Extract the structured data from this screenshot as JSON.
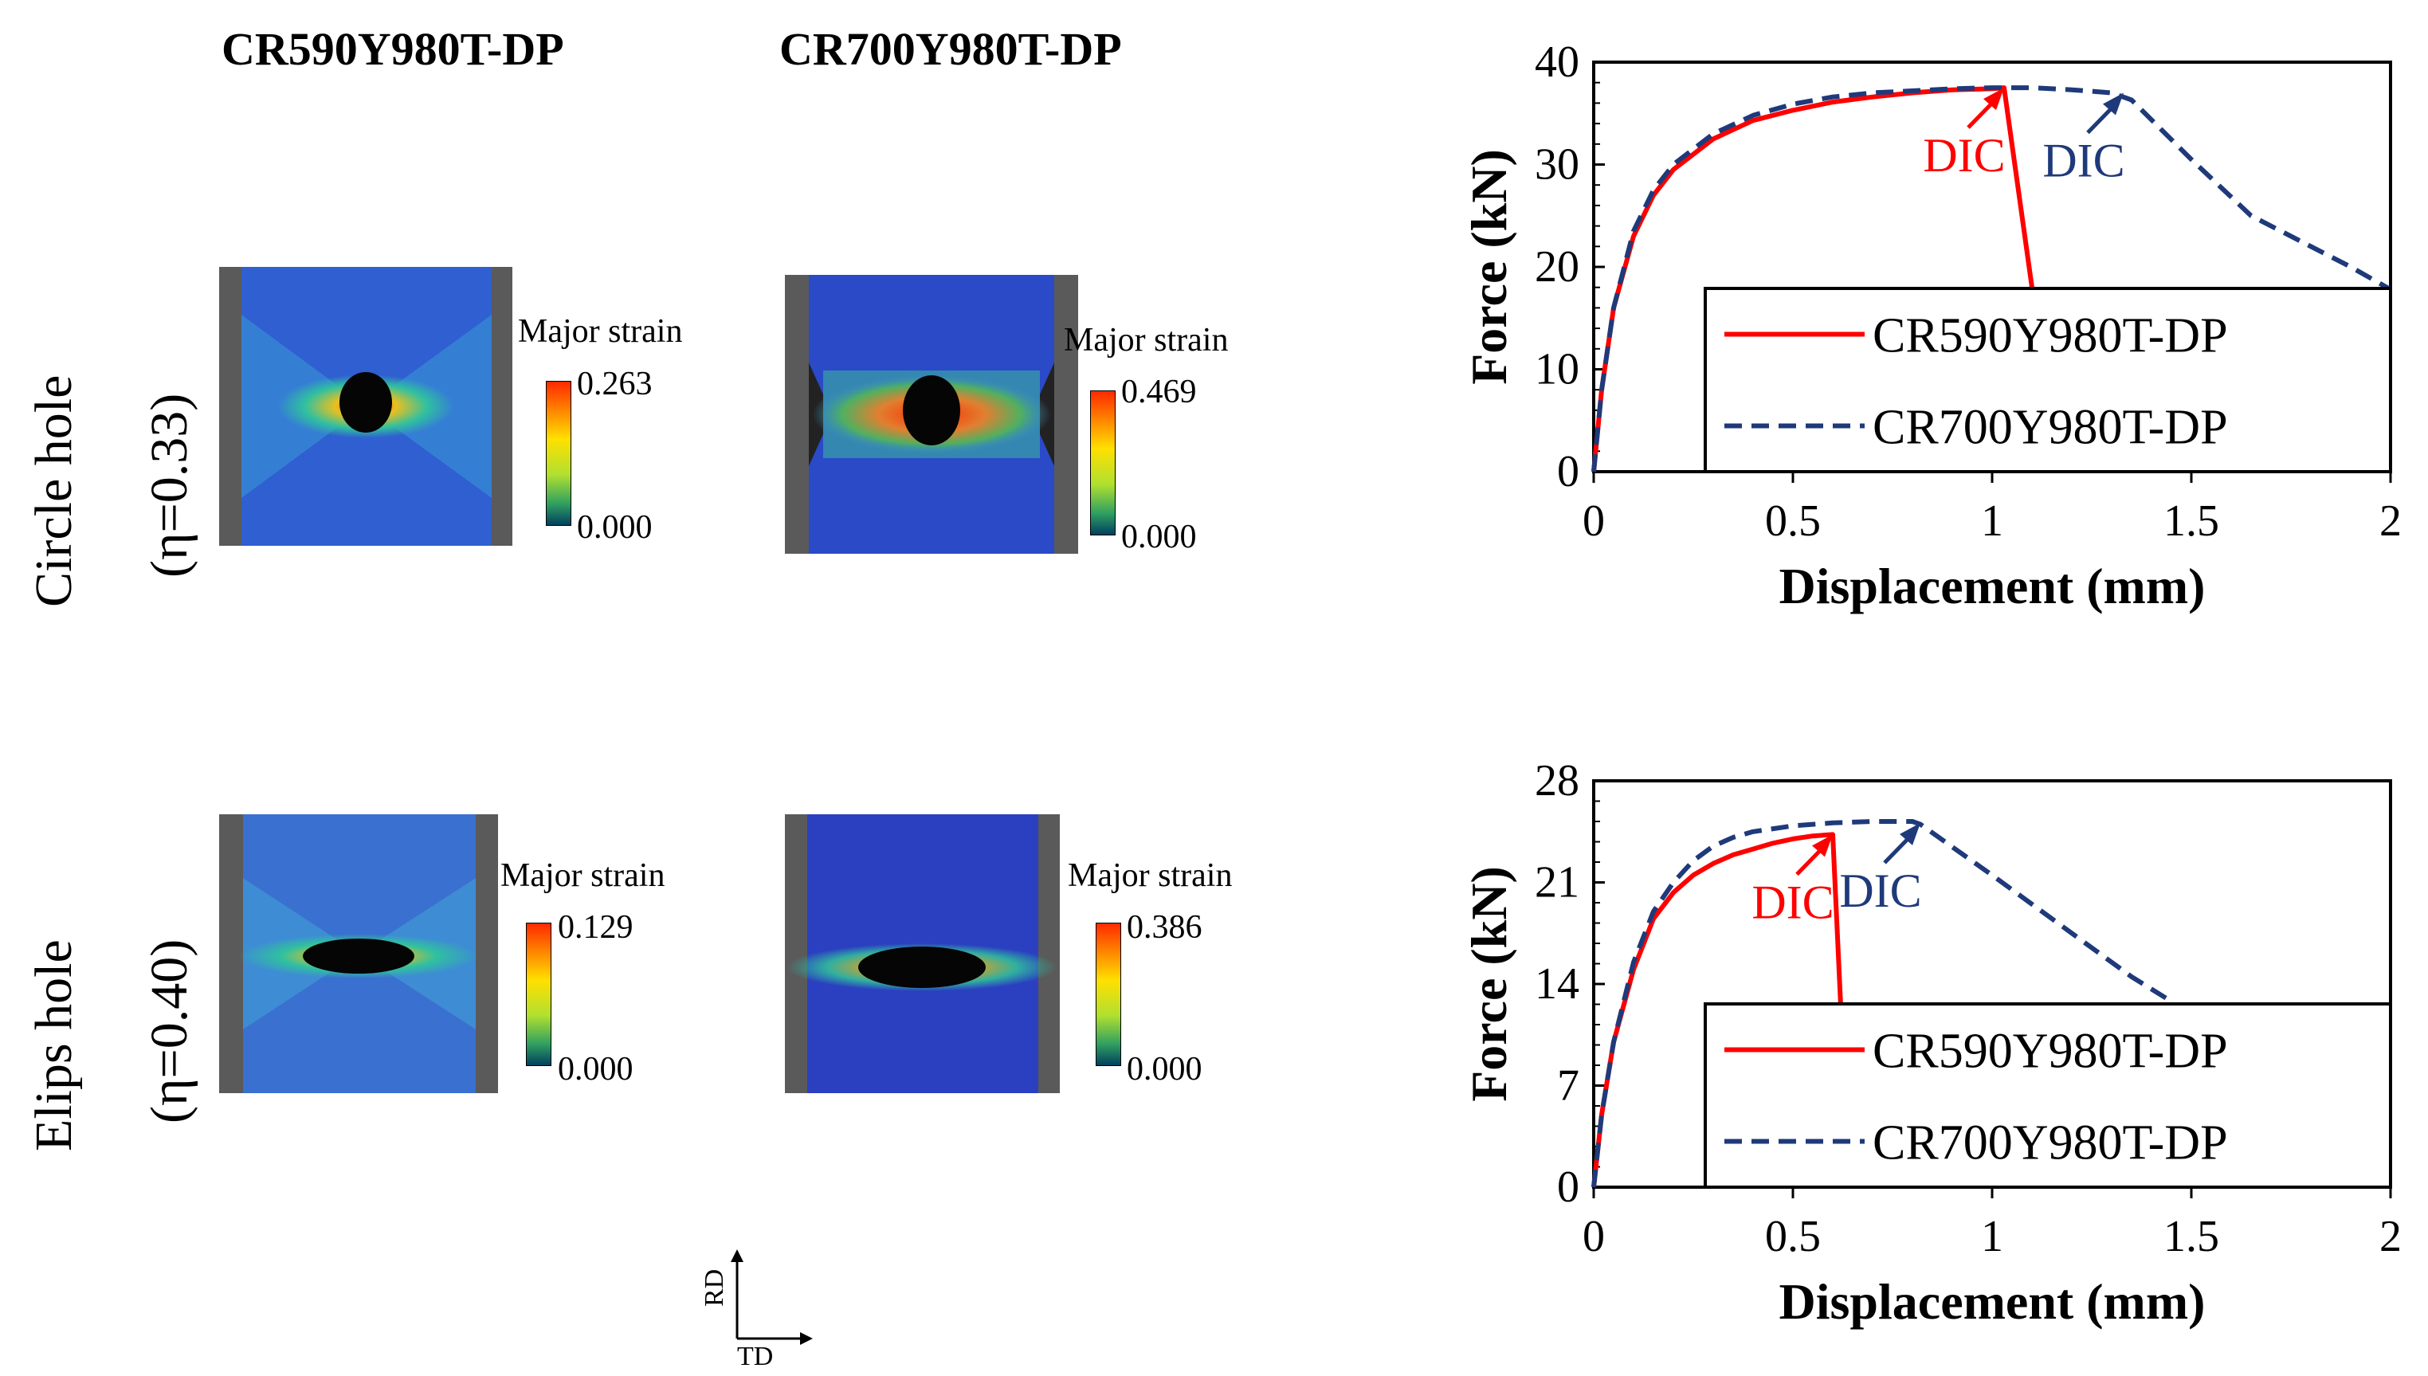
{
  "columns": [
    "CR590Y980T-DP",
    "CR700Y980T-DP"
  ],
  "rows": [
    {
      "label": "Circle hole",
      "eta": "(η=0.33)"
    },
    {
      "label": "Elips hole",
      "eta": "(η=0.40)"
    }
  ],
  "strain_maps": [
    {
      "title": "Major strain",
      "max": "0.263",
      "min": "0.000"
    },
    {
      "title": "Major strain",
      "max": "0.469",
      "min": "0.000"
    },
    {
      "title": "Major strain",
      "max": "0.129",
      "min": "0.000"
    },
    {
      "title": "Major strain",
      "max": "0.386",
      "min": "0.000"
    }
  ],
  "axes_indicator": {
    "vertical": "RD",
    "horizontal": "TD"
  },
  "colors": {
    "cr590": "#ff0000",
    "cr700": "#1f3a7a",
    "dic590": "#ff0000",
    "dic700": "#1f3a7a"
  },
  "chart_data": [
    {
      "type": "line",
      "xlabel": "Displacement (mm)",
      "ylabel": "Force (kN)",
      "xlim": [
        0,
        2
      ],
      "ylim": [
        0,
        40
      ],
      "xticks": [
        "0",
        "0.5",
        "1",
        "1.5",
        "2"
      ],
      "yticks": [
        "0",
        "10",
        "20",
        "30",
        "40"
      ],
      "legend_position": "bottom-right",
      "series": [
        {
          "name": "CR590Y980T-DP",
          "style": "solid",
          "x": [
            0,
            0.02,
            0.05,
            0.1,
            0.15,
            0.2,
            0.3,
            0.4,
            0.5,
            0.6,
            0.7,
            0.8,
            0.9,
            1.0,
            1.03,
            1.1
          ],
          "y": [
            0,
            8,
            16,
            23,
            27,
            29.5,
            32.5,
            34.3,
            35.3,
            36.1,
            36.6,
            37.0,
            37.3,
            37.4,
            37.5,
            18
          ]
        },
        {
          "name": "CR700Y980T-DP",
          "style": "dashed",
          "x": [
            0,
            0.02,
            0.05,
            0.1,
            0.15,
            0.2,
            0.3,
            0.4,
            0.5,
            0.6,
            0.7,
            0.8,
            0.9,
            1.0,
            1.1,
            1.2,
            1.3,
            1.35,
            1.5,
            1.65,
            1.8,
            1.9,
            2.0
          ],
          "y": [
            0,
            8,
            16,
            23.5,
            27.5,
            30,
            33,
            34.8,
            35.9,
            36.6,
            37.0,
            37.2,
            37.4,
            37.5,
            37.5,
            37.3,
            37.0,
            36.3,
            30.5,
            25,
            22,
            20,
            17.8
          ]
        }
      ],
      "annotations": [
        {
          "text": "DIC",
          "series": "CR590Y980T-DP",
          "x": 1.03,
          "y": 37.5
        },
        {
          "text": "DIC",
          "series": "CR700Y980T-DP",
          "x": 1.33,
          "y": 37.0
        }
      ]
    },
    {
      "type": "line",
      "xlabel": "Displacement (mm)",
      "ylabel": "Force (kN)",
      "xlim": [
        0,
        2
      ],
      "ylim": [
        0,
        28
      ],
      "xticks": [
        "0",
        "0.5",
        "1",
        "1.5",
        "2"
      ],
      "yticks": [
        "0",
        "7",
        "14",
        "21",
        "28"
      ],
      "legend_position": "bottom-right",
      "series": [
        {
          "name": "CR590Y980T-DP",
          "style": "solid",
          "x": [
            0,
            0.02,
            0.05,
            0.1,
            0.15,
            0.2,
            0.25,
            0.3,
            0.35,
            0.4,
            0.45,
            0.5,
            0.55,
            0.6,
            0.62
          ],
          "y": [
            0,
            5,
            10,
            15,
            18.5,
            20.3,
            21.5,
            22.3,
            22.9,
            23.3,
            23.7,
            24.0,
            24.2,
            24.3,
            12.5
          ]
        },
        {
          "name": "CR700Y980T-DP",
          "style": "dashed",
          "x": [
            0,
            0.02,
            0.05,
            0.1,
            0.15,
            0.2,
            0.25,
            0.3,
            0.35,
            0.4,
            0.5,
            0.6,
            0.7,
            0.8,
            0.82,
            1.0,
            1.2,
            1.35,
            1.45
          ],
          "y": [
            0,
            5,
            10,
            15.5,
            19,
            21,
            22.5,
            23.5,
            24.1,
            24.5,
            24.9,
            25.1,
            25.2,
            25.2,
            25.0,
            21.5,
            17.5,
            14.5,
            12.8
          ]
        }
      ],
      "annotations": [
        {
          "text": "DIC",
          "series": "CR590Y980T-DP",
          "x": 0.6,
          "y": 24.3
        },
        {
          "text": "DIC",
          "series": "CR700Y980T-DP",
          "x": 0.82,
          "y": 25.1
        }
      ]
    }
  ]
}
